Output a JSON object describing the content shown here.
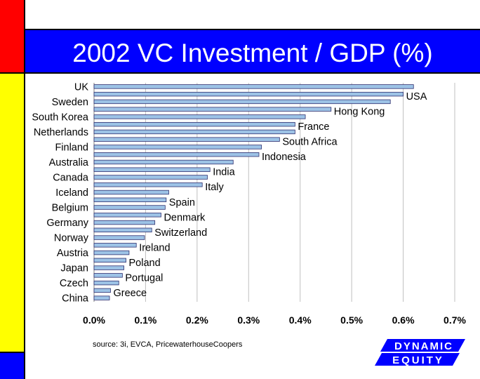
{
  "title": "2002 VC Investment / GDP (%)",
  "source": "source: 3i, EVCA, PricewaterhouseCoopers",
  "logo": {
    "line1": "DYNAMIC",
    "line2": "EQUITY"
  },
  "colors": {
    "stripe_red": "#ff0000",
    "stripe_yellow": "#ffff00",
    "stripe_blue": "#0000ff",
    "title_bar": "#0000ff",
    "bar_fill": "#9dc3e6",
    "bar_edge": "#2f2f6f"
  },
  "chart_data": {
    "type": "bar",
    "orientation": "horizontal",
    "title": "2002 VC Investment / GDP (%)",
    "xlim": [
      0,
      0.7
    ],
    "xticks": [
      "0.0%",
      "0.1%",
      "0.2%",
      "0.3%",
      "0.4%",
      "0.5%",
      "0.6%",
      "0.7%"
    ],
    "grid": true,
    "categories": [
      "UK",
      "USA",
      "Sweden",
      "Hong Kong",
      "South Korea",
      "France",
      "Netherlands",
      "South Africa",
      "Finland",
      "Indonesia",
      "Australia",
      "India",
      "Canada",
      "Italy",
      "Iceland",
      "Spain",
      "Belgium",
      "Denmark",
      "Germany",
      "Switzerland",
      "Norway",
      "Ireland",
      "Austria",
      "Poland",
      "Japan",
      "Portugal",
      "Czech",
      "Greece",
      "China"
    ],
    "values": [
      0.62,
      0.6,
      0.575,
      0.46,
      0.41,
      0.39,
      0.39,
      0.36,
      0.325,
      0.32,
      0.27,
      0.225,
      0.22,
      0.21,
      0.145,
      0.14,
      0.138,
      0.13,
      0.118,
      0.112,
      0.098,
      0.082,
      0.068,
      0.062,
      0.058,
      0.055,
      0.048,
      0.032,
      0.03
    ],
    "label_side": [
      "left",
      "right",
      "left",
      "right",
      "left",
      "right",
      "left",
      "right",
      "left",
      "right",
      "left",
      "right",
      "left",
      "right",
      "left",
      "right",
      "left",
      "right",
      "left",
      "right",
      "left",
      "right",
      "left",
      "right",
      "left",
      "right",
      "left",
      "right",
      "left"
    ]
  }
}
